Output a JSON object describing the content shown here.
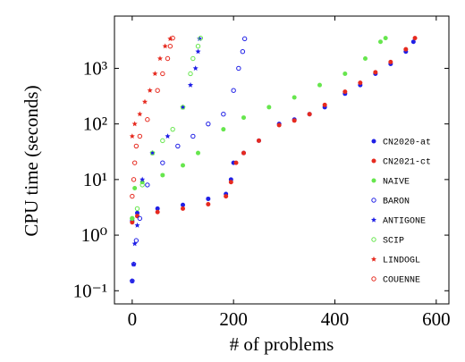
{
  "chart_data": {
    "type": "scatter",
    "x_label": "# of problems",
    "y_label": "CPU time (seconds)",
    "log_y": true,
    "xlim": [
      -35,
      625
    ],
    "ylim": [
      0.058,
      8700
    ],
    "xticks": [
      0,
      200,
      400,
      600
    ],
    "yticks": [
      {
        "value": 0.1,
        "label": "10⁻¹"
      },
      {
        "value": 1,
        "label": "10⁰"
      },
      {
        "value": 10,
        "label": "10¹"
      },
      {
        "value": 100,
        "label": "10²"
      },
      {
        "value": 1000,
        "label": "10³"
      }
    ],
    "grid": false,
    "legend_position": "lower right",
    "series": [
      {
        "name": "CN2020-at",
        "color": "#1f1fe6",
        "marker": "filled-circle",
        "x": [
          0,
          10,
          50,
          100,
          150,
          185,
          195,
          200,
          220,
          250,
          290,
          320,
          350,
          380,
          420,
          450,
          480,
          510,
          540,
          555
        ],
        "values": [
          1.8,
          2.5,
          3,
          3.5,
          4.5,
          5.5,
          10,
          20,
          30,
          50,
          100,
          120,
          150,
          200,
          350,
          500,
          800,
          1200,
          2000,
          3000
        ]
      },
      {
        "name": "CN2021-ct",
        "color": "#e62a1f",
        "marker": "filled-circle",
        "x": [
          0,
          10,
          50,
          100,
          150,
          185,
          195,
          205,
          220,
          250,
          290,
          320,
          350,
          380,
          420,
          450,
          480,
          510,
          540,
          558
        ],
        "values": [
          1.7,
          2.2,
          2.6,
          3,
          3.6,
          5,
          9,
          20,
          30,
          50,
          95,
          115,
          150,
          220,
          380,
          550,
          850,
          1300,
          2200,
          3500
        ]
      },
      {
        "name": "NAIVE",
        "color": "#66e64d",
        "marker": "filled-circle",
        "x": [
          0,
          5,
          20,
          60,
          100,
          130,
          180,
          220,
          270,
          320,
          370,
          420,
          460,
          490,
          500
        ],
        "values": [
          2,
          7,
          9,
          12,
          18,
          30,
          80,
          130,
          200,
          300,
          500,
          800,
          1500,
          3000,
          3500
        ]
      },
      {
        "name": "BARON",
        "color": "#1f1fe6",
        "marker": "open-circle",
        "x": [
          0,
          3,
          8,
          15,
          30,
          60,
          90,
          120,
          150,
          180,
          200,
          210,
          218,
          222
        ],
        "values": [
          0.15,
          0.3,
          0.8,
          2,
          8,
          20,
          40,
          60,
          100,
          150,
          400,
          1000,
          2000,
          3400
        ]
      },
      {
        "name": "ANTIGONE",
        "color": "#1f1fe6",
        "marker": "star",
        "x": [
          0,
          3,
          5,
          10,
          20,
          40,
          70,
          100,
          115,
          125,
          130,
          133
        ],
        "values": [
          0.15,
          0.3,
          0.7,
          1.5,
          10,
          30,
          60,
          200,
          500,
          1000,
          2000,
          3400
        ]
      },
      {
        "name": "SCIP",
        "color": "#66e64d",
        "marker": "open-circle",
        "x": [
          0,
          10,
          20,
          40,
          60,
          80,
          100,
          115,
          120,
          130,
          135
        ],
        "values": [
          2,
          3,
          8,
          30,
          50,
          80,
          200,
          800,
          1500,
          2500,
          3500
        ]
      },
      {
        "name": "LINDOGL",
        "color": "#e62a1f",
        "marker": "star",
        "x": [
          0,
          5,
          15,
          25,
          35,
          45,
          55,
          65,
          75
        ],
        "values": [
          60,
          100,
          150,
          250,
          400,
          800,
          1500,
          2500,
          3400
        ]
      },
      {
        "name": "COUENNE",
        "color": "#e62a1f",
        "marker": "open-circle",
        "x": [
          0,
          3,
          5,
          8,
          15,
          30,
          50,
          60,
          70,
          75,
          80
        ],
        "values": [
          5,
          10,
          20,
          40,
          60,
          120,
          400,
          800,
          1500,
          2500,
          3500
        ]
      }
    ]
  }
}
